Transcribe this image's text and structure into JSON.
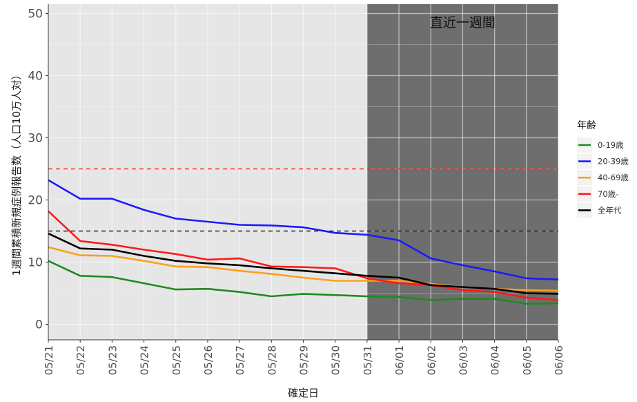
{
  "chart_data": {
    "type": "line",
    "title": "",
    "xlabel": "確定日",
    "ylabel": "1週間累積新規症例報告数（人口10万人対）",
    "x": [
      "05/21",
      "05/22",
      "05/23",
      "05/24",
      "05/25",
      "05/26",
      "05/27",
      "05/28",
      "05/29",
      "05/30",
      "05/31",
      "06/01",
      "06/02",
      "06/03",
      "06/04",
      "06/05",
      "06/06"
    ],
    "ylim": [
      -2.5,
      51.5
    ],
    "yticks": [
      0,
      10,
      20,
      30,
      40,
      50
    ],
    "grid": true,
    "recent_week": {
      "label": "直近一週間",
      "start": "05/31",
      "end": "06/06",
      "shade_color": "#6e6e6e"
    },
    "reference_lines": [
      {
        "y": 25,
        "color": "#ff2a2a"
      },
      {
        "y": 15,
        "color": "#222222"
      }
    ],
    "legend": {
      "title": "年齢",
      "position": "right"
    },
    "series": [
      {
        "name": "0-19歳",
        "color": "#1f8a1f",
        "values": [
          10.2,
          7.8,
          7.6,
          6.6,
          5.6,
          5.7,
          5.2,
          4.5,
          4.9,
          4.7,
          4.5,
          4.4,
          3.9,
          4.1,
          4.1,
          3.3,
          3.4
        ]
      },
      {
        "name": "20-39歳",
        "color": "#1a1aff",
        "values": [
          23.2,
          20.2,
          20.2,
          18.4,
          17.0,
          16.5,
          16.0,
          15.9,
          15.6,
          14.7,
          14.4,
          13.5,
          10.6,
          9.5,
          8.5,
          7.4,
          7.2
        ]
      },
      {
        "name": "40-69歳",
        "color": "#ff9f1c",
        "values": [
          12.4,
          11.1,
          11.0,
          10.2,
          9.3,
          9.2,
          8.6,
          8.1,
          7.5,
          7.0,
          7.0,
          7.0,
          6.5,
          6.0,
          5.7,
          5.5,
          5.4
        ]
      },
      {
        "name": "70歳-",
        "color": "#ff1a1a",
        "values": [
          18.2,
          13.4,
          12.8,
          12.0,
          11.3,
          10.4,
          10.6,
          9.3,
          9.2,
          9.0,
          7.4,
          6.6,
          6.3,
          5.5,
          5.2,
          4.3,
          3.9
        ]
      },
      {
        "name": "全年代",
        "color": "#000000",
        "values": [
          14.6,
          12.2,
          12.0,
          11.0,
          10.2,
          9.8,
          9.5,
          9.0,
          8.6,
          8.2,
          7.8,
          7.5,
          6.3,
          6.0,
          5.7,
          5.0,
          4.9
        ]
      }
    ]
  }
}
